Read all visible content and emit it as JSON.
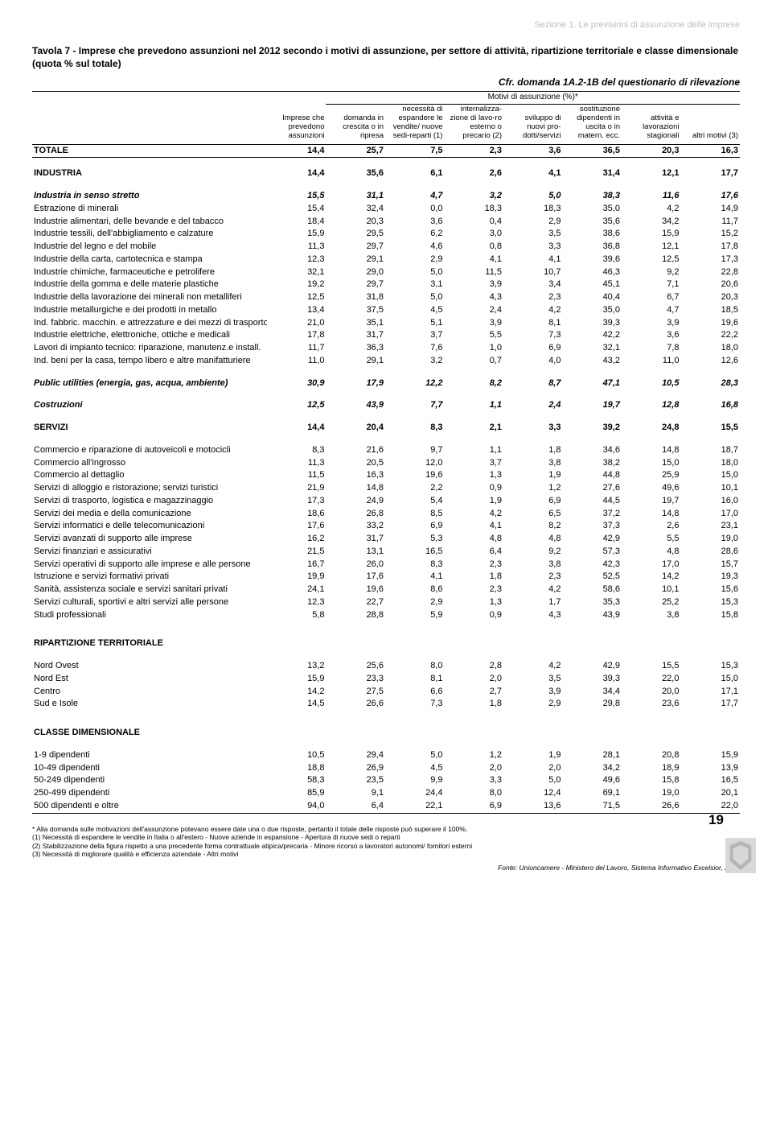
{
  "section_header": "Sezione 1. Le previsioni di assunzione delle imprese",
  "title": "Tavola 7 - Imprese che prevedono assunzioni nel 2012 secondo i motivi di assunzione, per settore di attività, ripartizione territoriale e classe dimensionale (quota % sul totale)",
  "subtitle": "Cfr. domanda 1A.2-1B del questionario di rilevazione",
  "group_header": "Motivi di assunzione (%)*",
  "columns": [
    "",
    "Imprese che prevedono assunzioni",
    "domanda in crescita o in ripresa",
    "necessità di espandere le vendite/ nuove sedi-reparti (1)",
    "internalizza-zione di lavo-ro esterno o precario (2)",
    "sviluppo di nuovi pro-dotti/servizi",
    "sostituzione dipendenti in uscita o in matern. ecc.",
    "attività e lavorazioni stagionali",
    "altri motivi (3)"
  ],
  "groups": [
    {
      "sep_before": "thick",
      "rows": [
        {
          "style": "bold",
          "label": "TOTALE",
          "v": [
            "14,4",
            "25,7",
            "7,5",
            "2,3",
            "3,6",
            "36,5",
            "20,3",
            "16,3"
          ]
        }
      ],
      "sep_after": "thin"
    },
    {
      "rows": [
        {
          "style": "bold",
          "label": "INDUSTRIA",
          "v": [
            "14,4",
            "35,6",
            "6,1",
            "2,6",
            "4,1",
            "31,4",
            "12,1",
            "17,7"
          ]
        }
      ]
    },
    {
      "rows": [
        {
          "style": "italic",
          "label": "Industria in senso stretto",
          "v": [
            "15,5",
            "31,1",
            "4,7",
            "3,2",
            "5,0",
            "38,3",
            "11,6",
            "17,6"
          ]
        },
        {
          "label": "Estrazione di minerali",
          "v": [
            "15,4",
            "32,4",
            "0,0",
            "18,3",
            "18,3",
            "35,0",
            "4,2",
            "14,9"
          ]
        },
        {
          "label": "Industrie alimentari, delle bevande e del tabacco",
          "v": [
            "18,4",
            "20,3",
            "3,6",
            "0,4",
            "2,9",
            "35,6",
            "34,2",
            "11,7"
          ]
        },
        {
          "label": "Industrie tessili, dell'abbigliamento e calzature",
          "v": [
            "15,9",
            "29,5",
            "6,2",
            "3,0",
            "3,5",
            "38,6",
            "15,9",
            "15,2"
          ]
        },
        {
          "label": "Industrie del legno e del mobile",
          "v": [
            "11,3",
            "29,7",
            "4,6",
            "0,8",
            "3,3",
            "36,8",
            "12,1",
            "17,8"
          ]
        },
        {
          "label": "Industrie della carta, cartotecnica e stampa",
          "v": [
            "12,3",
            "29,1",
            "2,9",
            "4,1",
            "4,1",
            "39,6",
            "12,5",
            "17,3"
          ]
        },
        {
          "label": "Industrie chimiche, farmaceutiche e petrolifere",
          "v": [
            "32,1",
            "29,0",
            "5,0",
            "11,5",
            "10,7",
            "46,3",
            "9,2",
            "22,8"
          ]
        },
        {
          "label": "Industrie della gomma e delle materie plastiche",
          "v": [
            "19,2",
            "29,7",
            "3,1",
            "3,9",
            "3,4",
            "45,1",
            "7,1",
            "20,6"
          ]
        },
        {
          "label": "Industrie della lavorazione dei minerali non metalliferi",
          "v": [
            "12,5",
            "31,8",
            "5,0",
            "4,3",
            "2,3",
            "40,4",
            "6,7",
            "20,3"
          ]
        },
        {
          "label": "Industrie metallurgiche e dei prodotti in metallo",
          "v": [
            "13,4",
            "37,5",
            "4,5",
            "2,4",
            "4,2",
            "35,0",
            "4,7",
            "18,5"
          ]
        },
        {
          "label": "Ind. fabbric. macchin. e attrezzature e dei mezzi di trasporto",
          "v": [
            "21,0",
            "35,1",
            "5,1",
            "3,9",
            "8,1",
            "39,3",
            "3,9",
            "19,6"
          ]
        },
        {
          "label": "Industrie elettriche, elettroniche, ottiche e medicali",
          "v": [
            "17,8",
            "31,7",
            "3,7",
            "5,5",
            "7,3",
            "42,2",
            "3,6",
            "22,2"
          ]
        },
        {
          "label": "Lavori di impianto tecnico: riparazione, manutenz.e install.",
          "v": [
            "11,7",
            "36,3",
            "7,6",
            "1,0",
            "6,9",
            "32,1",
            "7,8",
            "18,0"
          ]
        },
        {
          "label": "Ind. beni per la casa, tempo libero e altre manifatturiere",
          "v": [
            "11,0",
            "29,1",
            "3,2",
            "0,7",
            "4,0",
            "43,2",
            "11,0",
            "12,6"
          ]
        }
      ]
    },
    {
      "rows": [
        {
          "style": "italic",
          "label": "Public utilities (energia, gas, acqua, ambiente)",
          "v": [
            "30,9",
            "17,9",
            "12,2",
            "8,2",
            "8,7",
            "47,1",
            "10,5",
            "28,3"
          ]
        }
      ]
    },
    {
      "rows": [
        {
          "style": "italic",
          "label": "Costruzioni",
          "v": [
            "12,5",
            "43,9",
            "7,7",
            "1,1",
            "2,4",
            "19,7",
            "12,8",
            "16,8"
          ]
        }
      ]
    },
    {
      "rows": [
        {
          "style": "bold",
          "label": "SERVIZI",
          "v": [
            "14,4",
            "20,4",
            "8,3",
            "2,1",
            "3,3",
            "39,2",
            "24,8",
            "15,5"
          ]
        }
      ]
    },
    {
      "rows": [
        {
          "label": "Commercio e riparazione di autoveicoli e motocicli",
          "v": [
            "8,3",
            "21,6",
            "9,7",
            "1,1",
            "1,8",
            "34,6",
            "14,8",
            "18,7"
          ]
        },
        {
          "label": "Commercio all'ingrosso",
          "v": [
            "11,3",
            "20,5",
            "12,0",
            "3,7",
            "3,8",
            "38,2",
            "15,0",
            "18,0"
          ]
        },
        {
          "label": "Commercio al dettaglio",
          "v": [
            "11,5",
            "16,3",
            "19,6",
            "1,3",
            "1,9",
            "44,8",
            "25,9",
            "15,0"
          ]
        },
        {
          "label": "Servizi di alloggio e ristorazione; servizi turistici",
          "v": [
            "21,9",
            "14,8",
            "2,2",
            "0,9",
            "1,2",
            "27,6",
            "49,6",
            "10,1"
          ]
        },
        {
          "label": "Servizi di trasporto, logistica e magazzinaggio",
          "v": [
            "17,3",
            "24,9",
            "5,4",
            "1,9",
            "6,9",
            "44,5",
            "19,7",
            "16,0"
          ]
        },
        {
          "label": "Servizi dei media e della comunicazione",
          "v": [
            "18,6",
            "26,8",
            "8,5",
            "4,2",
            "6,5",
            "37,2",
            "14,8",
            "17,0"
          ]
        },
        {
          "label": "Servizi informatici e delle telecomunicazioni",
          "v": [
            "17,6",
            "33,2",
            "6,9",
            "4,1",
            "8,2",
            "37,3",
            "2,6",
            "23,1"
          ]
        },
        {
          "label": "Servizi avanzati di supporto alle imprese",
          "v": [
            "16,2",
            "31,7",
            "5,3",
            "4,8",
            "4,8",
            "42,9",
            "5,5",
            "19,0"
          ]
        },
        {
          "label": "Servizi finanziari e assicurativi",
          "v": [
            "21,5",
            "13,1",
            "16,5",
            "6,4",
            "9,2",
            "57,3",
            "4,8",
            "28,6"
          ]
        },
        {
          "label": "Servizi operativi di supporto alle imprese e alle persone",
          "v": [
            "16,7",
            "26,0",
            "8,3",
            "2,3",
            "3,8",
            "42,3",
            "17,0",
            "15,7"
          ]
        },
        {
          "label": "Istruzione e servizi formativi privati",
          "v": [
            "19,9",
            "17,6",
            "4,1",
            "1,8",
            "2,3",
            "52,5",
            "14,2",
            "19,3"
          ]
        },
        {
          "label": "Sanità, assistenza sociale e servizi sanitari privati",
          "v": [
            "24,1",
            "19,6",
            "8,6",
            "2,3",
            "4,2",
            "58,6",
            "10,1",
            "15,6"
          ]
        },
        {
          "label": "Servizi culturali, sportivi e altri servizi alle persone",
          "v": [
            "12,3",
            "22,7",
            "2,9",
            "1,3",
            "1,7",
            "35,3",
            "25,2",
            "15,3"
          ]
        },
        {
          "label": "Studi professionali",
          "v": [
            "5,8",
            "28,8",
            "5,9",
            "0,9",
            "4,3",
            "43,9",
            "3,8",
            "15,8"
          ]
        }
      ]
    },
    {
      "spacer": "lg",
      "rows": [
        {
          "style": "bold",
          "label": "RIPARTIZIONE TERRITORIALE",
          "v": [
            "",
            "",
            "",
            "",
            "",
            "",
            "",
            ""
          ]
        }
      ]
    },
    {
      "rows": [
        {
          "label": "Nord Ovest",
          "v": [
            "13,2",
            "25,6",
            "8,0",
            "2,8",
            "4,2",
            "42,9",
            "15,5",
            "15,3"
          ]
        },
        {
          "label": "Nord Est",
          "v": [
            "15,9",
            "23,3",
            "8,1",
            "2,0",
            "3,5",
            "39,3",
            "22,0",
            "15,0"
          ]
        },
        {
          "label": "Centro",
          "v": [
            "14,2",
            "27,5",
            "6,6",
            "2,7",
            "3,9",
            "34,4",
            "20,0",
            "17,1"
          ]
        },
        {
          "label": "Sud e Isole",
          "v": [
            "14,5",
            "26,6",
            "7,3",
            "1,8",
            "2,9",
            "29,8",
            "23,6",
            "17,7"
          ]
        }
      ]
    },
    {
      "spacer": "lg",
      "rows": [
        {
          "style": "bold",
          "label": "CLASSE DIMENSIONALE",
          "v": [
            "",
            "",
            "",
            "",
            "",
            "",
            "",
            ""
          ]
        }
      ]
    },
    {
      "rows": [
        {
          "label": "1-9 dipendenti",
          "v": [
            "10,5",
            "29,4",
            "5,0",
            "1,2",
            "1,9",
            "28,1",
            "20,8",
            "15,9"
          ]
        },
        {
          "label": "10-49 dipendenti",
          "v": [
            "18,8",
            "26,9",
            "4,5",
            "2,0",
            "2,0",
            "34,2",
            "18,9",
            "13,9"
          ]
        },
        {
          "label": "50-249 dipendenti",
          "v": [
            "58,3",
            "23,5",
            "9,9",
            "3,3",
            "5,0",
            "49,6",
            "15,8",
            "16,5"
          ]
        },
        {
          "label": "250-499 dipendenti",
          "v": [
            "85,9",
            "9,1",
            "24,4",
            "8,0",
            "12,4",
            "69,1",
            "19,0",
            "20,1"
          ]
        },
        {
          "label": "500 dipendenti e oltre",
          "v": [
            "94,0",
            "6,4",
            "22,1",
            "6,9",
            "13,6",
            "71,5",
            "26,6",
            "22,0"
          ]
        }
      ],
      "sep_after": "thin"
    }
  ],
  "footnotes": [
    "* Alla domanda sulle motivazioni dell'assunzione potevano essere date una o due risposte, pertanto il totale delle risposte può superare il 100%.",
    "(1) Necessità di espandere le vendite in Italia o all'estero - Nuove aziende in espansione - Apertura di nuove sedi o reparti",
    "(2) Stabilizzazione della figura rispetto a una precedente forma contrattuale atipica/precaria - Minore ricorso a lavoratori autonomi/ fornitori esterni",
    "(3) Necessità di migliorare qualità e efficienza aziendale - Altri motivi"
  ],
  "page_number": "19",
  "source": "Fonte: Unioncamere - Ministero del Lavoro, Sistema Informativo Excelsior, 2012"
}
